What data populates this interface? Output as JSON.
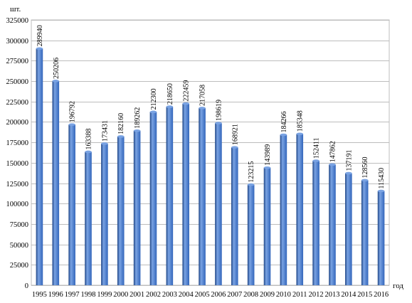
{
  "chart_data": {
    "type": "bar",
    "title": "",
    "ylabel": "шт.",
    "xlabel": "год",
    "categories": [
      "1995",
      "1996",
      "1997",
      "1998",
      "1999",
      "2000",
      "2001",
      "2002",
      "2003",
      "2004",
      "2005",
      "2006",
      "2007",
      "2008",
      "2009",
      "2010",
      "2011",
      "2012",
      "2013",
      "2014",
      "2015",
      "2016"
    ],
    "values": [
      289940,
      250206,
      196792,
      163388,
      173431,
      182160,
      189262,
      212300,
      218650,
      222459,
      217058,
      198619,
      168921,
      123215,
      143989,
      184266,
      185348,
      152411,
      147862,
      137191,
      128560,
      115430
    ],
    "ylim": [
      0,
      325000
    ],
    "yticks": [
      0,
      25000,
      50000,
      75000,
      100000,
      125000,
      150000,
      175000,
      200000,
      225000,
      250000,
      275000,
      300000,
      325000
    ],
    "grid": true,
    "bar_color": "#3366bb",
    "bar_highlight": "#7aa3e3",
    "bar_shadow": "#1e4586",
    "grid_color": "#bdbdbd"
  }
}
